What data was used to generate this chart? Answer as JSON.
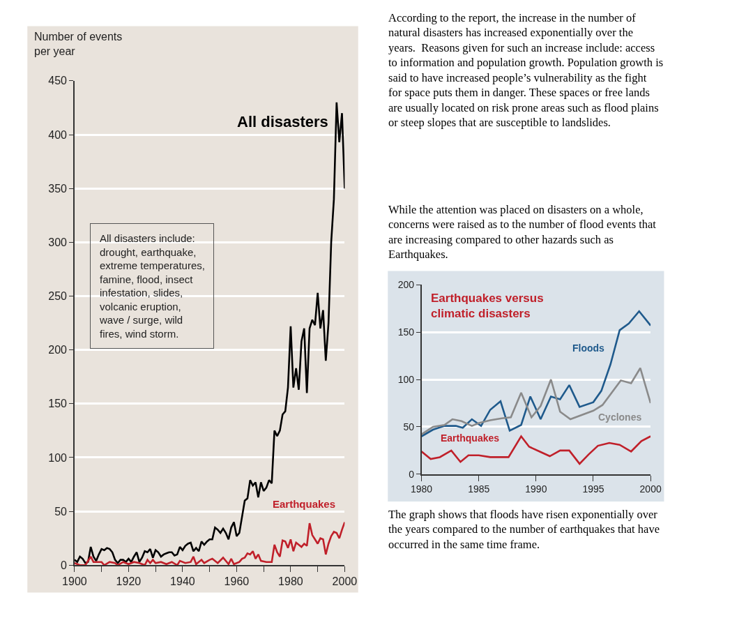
{
  "chart_data": [
    {
      "type": "line",
      "ylabel": "Number of events per year",
      "xlim": [
        1900,
        2000
      ],
      "ylim": [
        0,
        450
      ],
      "xticks": [
        1900,
        {
          "value": 1910,
          "label": null
        },
        1920,
        {
          "value": 1930,
          "label": null
        },
        1940,
        {
          "value": 1950,
          "label": null
        },
        1960,
        {
          "value": 1970,
          "label": null
        },
        1980,
        {
          "value": 1990,
          "label": null
        },
        2000
      ],
      "yticks": [
        0,
        50,
        100,
        150,
        200,
        250,
        300,
        350,
        400,
        450
      ],
      "grid": "y",
      "marker": "none",
      "line_style": "solid",
      "annotations": [
        "All disasters include: drought, earthquake, extreme temperatures, famine, flood, insect infestation, slides, volcanic eruption, wave / surge, wild fires, wind storm."
      ],
      "series": [
        {
          "name": "All disasters",
          "color": "#000000",
          "x": [
            1900,
            1901,
            1902,
            1903,
            1904,
            1905,
            1906,
            1907,
            1908,
            1909,
            1910,
            1911,
            1912,
            1913,
            1914,
            1915,
            1916,
            1917,
            1918,
            1919,
            1920,
            1921,
            1922,
            1923,
            1924,
            1925,
            1926,
            1927,
            1928,
            1929,
            1930,
            1931,
            1932,
            1933,
            1934,
            1935,
            1936,
            1937,
            1938,
            1939,
            1940,
            1941,
            1942,
            1943,
            1944,
            1945,
            1946,
            1947,
            1948,
            1949,
            1950,
            1951,
            1952,
            1953,
            1954,
            1955,
            1956,
            1957,
            1958,
            1959,
            1960,
            1961,
            1962,
            1963,
            1964,
            1965,
            1966,
            1967,
            1968,
            1969,
            1970,
            1971,
            1972,
            1973,
            1974,
            1975,
            1976,
            1977,
            1978,
            1979,
            1980,
            1981,
            1982,
            1983,
            1984,
            1985,
            1986,
            1987,
            1988,
            1989,
            1990,
            1991,
            1992,
            1993,
            1994,
            1995,
            1996,
            1997,
            1998,
            1999,
            2000
          ],
          "values": [
            5,
            3,
            8,
            6,
            2,
            3,
            17,
            8,
            4,
            10,
            15,
            14,
            16,
            15,
            12,
            5,
            2,
            5,
            5,
            3,
            6,
            3,
            8,
            12,
            3,
            7,
            13,
            12,
            15,
            7,
            14,
            12,
            8,
            10,
            11,
            12,
            12,
            9,
            10,
            17,
            14,
            18,
            20,
            21,
            13,
            16,
            13,
            22,
            19,
            22,
            24,
            24,
            35,
            33,
            30,
            34,
            30,
            24,
            35,
            40,
            27,
            30,
            45,
            60,
            62,
            79,
            74,
            77,
            63,
            77,
            69,
            72,
            79,
            76,
            125,
            120,
            125,
            140,
            143,
            165,
            222,
            165,
            183,
            163,
            208,
            220,
            160,
            220,
            228,
            223,
            253,
            220,
            237,
            190,
            225,
            300,
            340,
            430,
            393,
            420,
            350
          ]
        },
        {
          "name": "Earthquakes",
          "color": "#c0202a",
          "x": [
            1900,
            1902,
            1904,
            1906,
            1907,
            1910,
            1911,
            1913,
            1915,
            1916,
            1918,
            1920,
            1922,
            1924,
            1926,
            1927,
            1928,
            1929,
            1930,
            1932,
            1934,
            1936,
            1938,
            1939,
            1941,
            1943,
            1944,
            1945,
            1947,
            1948,
            1950,
            1951,
            1953,
            1955,
            1957,
            1958,
            1959,
            1961,
            1962,
            1963,
            1964,
            1965,
            1966,
            1967,
            1968,
            1969,
            1971,
            1973,
            1974,
            1975,
            1976,
            1977,
            1978,
            1979,
            1980,
            1981,
            1982,
            1983,
            1984,
            1985,
            1986,
            1987,
            1988,
            1989,
            1990,
            1991,
            1992,
            1993,
            1994,
            1995,
            1996,
            1997,
            1998,
            1999,
            2000
          ],
          "values": [
            2,
            0,
            0,
            8,
            3,
            3,
            0,
            3,
            2,
            0,
            3,
            1,
            3,
            2,
            0,
            5,
            2,
            5,
            2,
            3,
            1,
            3,
            0,
            4,
            2,
            3,
            8,
            1,
            5,
            2,
            5,
            6,
            2,
            7,
            1,
            6,
            1,
            3,
            6,
            7,
            11,
            10,
            13,
            6,
            10,
            4,
            3,
            3,
            19,
            12,
            8,
            23,
            22,
            16,
            24,
            13,
            21,
            19,
            17,
            20,
            18,
            39,
            28,
            24,
            20,
            25,
            24,
            10,
            20,
            27,
            31,
            30,
            25,
            33,
            40
          ]
        }
      ]
    },
    {
      "type": "line",
      "title": "Earthquakes versus climatic disasters",
      "xlim": [
        1980,
        2000
      ],
      "ylim": [
        0,
        200
      ],
      "xticks": [
        1980,
        1985,
        1990,
        1995,
        2000
      ],
      "yticks": [
        0,
        50,
        100,
        150,
        200
      ],
      "grid": "y",
      "marker": "none",
      "line_style": "solid",
      "series": [
        {
          "name": "Floods",
          "color": "#1f5a8c",
          "x": [
            1980,
            1981,
            1982,
            1983,
            1983.6,
            1984.4,
            1985.2,
            1986,
            1986.9,
            1987.7,
            1988.7,
            1989.5,
            1990.4,
            1991.3,
            1992.1,
            1992.9,
            1993.8,
            1995,
            1995.7,
            1996.5,
            1997.3,
            1998.1,
            1999,
            2000
          ],
          "values": [
            40,
            47,
            51,
            51,
            49,
            58,
            51,
            68,
            77,
            46,
            52,
            82,
            58,
            82,
            79,
            94,
            71,
            76,
            88,
            116,
            152,
            159,
            172,
            157
          ]
        },
        {
          "name": "Cyclones",
          "color": "#8a8a8a",
          "x": [
            1980,
            1981,
            1982,
            1982.7,
            1983.5,
            1984.4,
            1985,
            1986,
            1987,
            1987.8,
            1988.7,
            1989.6,
            1990.4,
            1991.3,
            1992.1,
            1993,
            1995,
            1995.8,
            1997.4,
            1998.3,
            1999.1,
            2000
          ],
          "values": [
            42,
            50,
            52,
            58,
            56,
            51,
            54,
            57,
            59,
            60,
            86,
            60,
            72,
            100,
            66,
            58,
            67,
            73,
            99,
            96,
            112,
            75
          ]
        },
        {
          "name": "Earthquakes",
          "color": "#c0202a",
          "x": [
            1980,
            1980.8,
            1981.6,
            1982.6,
            1983.4,
            1984.1,
            1985,
            1986,
            1987,
            1987.6,
            1988.7,
            1989.4,
            1990.3,
            1991.2,
            1992.1,
            1992.9,
            1993.8,
            1994.6,
            1995.4,
            1996.4,
            1997.3,
            1998.3,
            1999.2,
            2000
          ],
          "values": [
            24,
            16,
            18,
            25,
            13,
            20,
            20,
            18,
            18,
            18,
            40,
            29,
            24,
            19,
            25,
            25,
            11,
            21,
            30,
            33,
            31,
            24,
            35,
            40
          ]
        }
      ]
    },
    {
      "type": "other",
      "annotations": [
        "According to the report, the increase in the number of natural disasters has increased exponentially over the years.  Reasons given for such an increase include: access to information and population growth. Population growth is said to have increased people’s vulnerability as the fight for space puts them in danger. These spaces or free lands are usually located on risk prone areas such as flood plains or steep slopes that are susceptible to landslides.",
        "While the attention was placed on disasters on a whole, concerns were raised as to the number of flood events that are increasing compared to other hazards such as Earthquakes.",
        "The graph shows that floods have risen exponentially over the years compared to the number of earthquakes that have occurred in the same time frame."
      ]
    }
  ]
}
